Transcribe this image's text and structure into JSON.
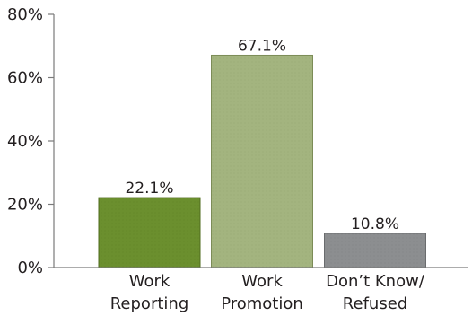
{
  "chart_data": {
    "type": "bar",
    "categories": [
      [
        "Work",
        "Reporting"
      ],
      [
        "Work",
        "Promotion"
      ],
      [
        "Don’t Know/",
        "Refused"
      ]
    ],
    "values": [
      22.1,
      67.1,
      10.8
    ],
    "value_labels": [
      "22.1%",
      "67.1%",
      "10.8%"
    ],
    "bar_colors": [
      "#6b8f2e",
      "#a3b47f",
      "#8c8e90"
    ],
    "bar_stroke_colors": [
      "#4f6b1d",
      "#7c8c57",
      "#6a6c6e"
    ],
    "ylim": [
      0,
      80
    ],
    "yticks": [
      0,
      20,
      40,
      60,
      80
    ],
    "ytick_labels": [
      "0%",
      "20%",
      "40%",
      "60%",
      "80%"
    ],
    "title": "",
    "xlabel": "",
    "ylabel": "",
    "grid": false,
    "legend": "none"
  }
}
